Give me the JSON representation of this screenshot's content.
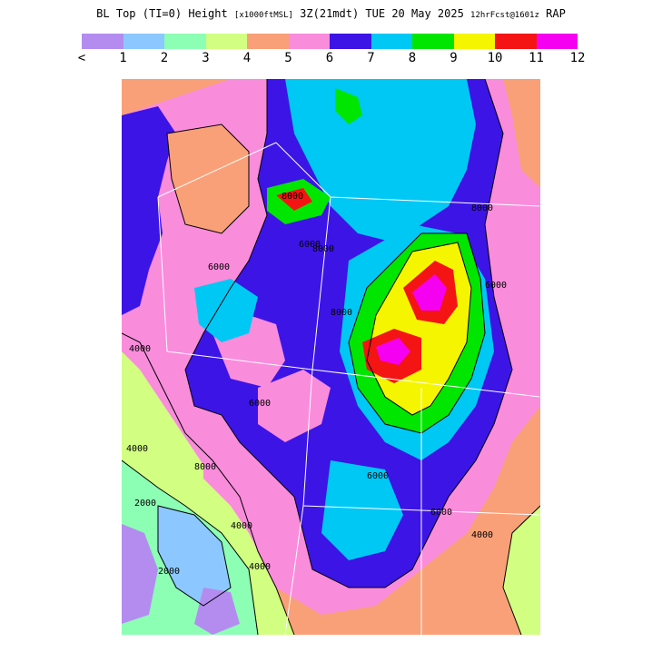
{
  "title": {
    "field": "BL Top (TI=0) Height",
    "units": "[x1000ftMSL]",
    "valid": "3Z(21mdt) TUE 20 May 2025",
    "forecast": "12hrFcst@1601z",
    "model": "RAP"
  },
  "legend": {
    "colors": [
      "#b48cf0",
      "#8cc8ff",
      "#8cffb4",
      "#d2ff82",
      "#faa078",
      "#fa8cdc",
      "#3c14e6",
      "#00c8f5",
      "#00e600",
      "#f5f500",
      "#f51414",
      "#f500f0"
    ],
    "labels": [
      "<",
      "1",
      "2",
      "3",
      "4",
      "5",
      "6",
      "7",
      "8",
      "9",
      "10",
      "11",
      "12"
    ]
  },
  "map": {
    "background_color": "#faa078",
    "contour_labels": [
      "8000",
      "4000",
      "6000",
      "8000",
      "6000",
      "4000",
      "2000",
      "2000",
      "4000",
      "4000",
      "6000",
      "6000",
      "8000",
      "4000",
      "8000",
      "8000",
      "6000",
      "6000"
    ]
  }
}
